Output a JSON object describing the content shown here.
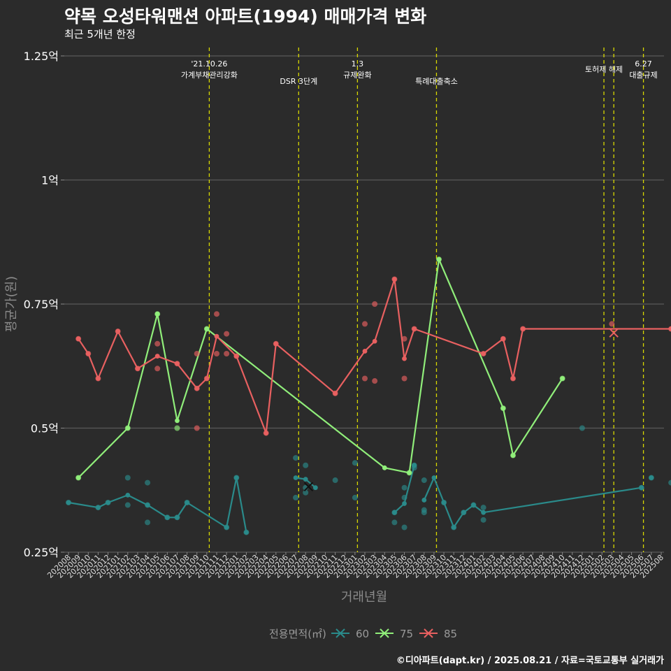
{
  "title": "약목 오성타워맨션 아파트(1994) 매매가격 변화",
  "subtitle": "최근 5개년 한정",
  "credit": "©디아파트(dapt.kr) / 2025.08.21 / 자료=국토교통부 실거래가",
  "chart_data": {
    "type": "line",
    "xlabel": "거래년월",
    "ylabel": "평균가(원)",
    "ylim": [
      0.25,
      1.25
    ],
    "yticks": [
      0.25,
      0.5,
      0.75,
      1,
      1.25
    ],
    "ytick_labels": [
      "0.25억",
      "0.5억",
      "0.75억",
      "1억",
      "1.25억"
    ],
    "grid": "horizontal",
    "x_categories": [
      "202008",
      "202009",
      "202010",
      "202011",
      "202012",
      "202101",
      "202102",
      "202103",
      "202104",
      "202105",
      "202106",
      "202107",
      "202108",
      "202109",
      "202110",
      "202111",
      "202112",
      "202201",
      "202202",
      "202203",
      "202204",
      "202205",
      "202206",
      "202207",
      "202208",
      "202209",
      "202210",
      "202211",
      "202212",
      "202301",
      "202302",
      "202303",
      "202304",
      "202305",
      "202306",
      "202307",
      "202308",
      "202309",
      "202310",
      "202311",
      "202312",
      "202401",
      "202402",
      "202403",
      "202404",
      "202405",
      "202406",
      "202407",
      "202408",
      "202409",
      "202410",
      "202411",
      "202412",
      "202501",
      "202502",
      "202503",
      "202504",
      "202505",
      "202506",
      "202507",
      "202508"
    ],
    "x_tick_labels": [
      "202008",
      "202009",
      "202010",
      "202011",
      "202012",
      "202101",
      "202102",
      "202103",
      "202104",
      "202105",
      "202106",
      "202107",
      "202108",
      "202109",
      "202110",
      "202111",
      "202112",
      "202201",
      "202202",
      "202203",
      "202204",
      "202205",
      "202206",
      "202207",
      "202208",
      "202209",
      "202210",
      "202211",
      "202212",
      "202301",
      "202302",
      "202303",
      "202304",
      "202305",
      "202306",
      "202307",
      "202308",
      "202309",
      "202310",
      "202311",
      "202312",
      "202401",
      "202402",
      "202403",
      "202404",
      "202405",
      "202406",
      "202407",
      "202408",
      "202409",
      "202410",
      "202411",
      "202412",
      "202501",
      "202502",
      "202503",
      "202504",
      "202505",
      "202506",
      "202507",
      "202508"
    ],
    "events": [
      {
        "x": 14.25,
        "label": "'21.10.26\n가계부채관리강화"
      },
      {
        "x": 23.3,
        "label": "DSR 3단계"
      },
      {
        "x": 29.25,
        "label": "1.3\n규제완화"
      },
      {
        "x": 37.25,
        "label": "특례대출축소"
      },
      {
        "x": 54.2,
        "label": "토허제 해제"
      },
      {
        "x": 55.2,
        "label": ""
      },
      {
        "x": 58.2,
        "label": "6.27\n대출규제"
      }
    ],
    "legend_title": "전용면적(㎡)",
    "legend_position": "bottom",
    "series": [
      {
        "name": "60",
        "color": "#2a8a8a",
        "line": [
          [
            0,
            0.35
          ],
          [
            3,
            0.34
          ],
          [
            4,
            0.35
          ],
          [
            6,
            0.365
          ],
          [
            8,
            0.345
          ],
          [
            10,
            0.32
          ],
          [
            11,
            0.32
          ],
          [
            12,
            0.35
          ],
          [
            16,
            0.3
          ],
          [
            17,
            0.4
          ],
          [
            18,
            0.29
          ],
          [
            23,
            0.4
          ],
          [
            24,
            0.397
          ],
          [
            25,
            0.38
          ],
          [
            33,
            0.33
          ],
          [
            34,
            0.348
          ],
          [
            35,
            0.425
          ],
          [
            36,
            0.355
          ],
          [
            37,
            0.4
          ],
          [
            38,
            0.35
          ],
          [
            39,
            0.3
          ],
          [
            40,
            0.33
          ],
          [
            41,
            0.345
          ],
          [
            42,
            0.33
          ],
          [
            58,
            0.38
          ],
          [
            59,
            0.4
          ]
        ],
        "segments": [
          [
            0,
            11
          ],
          [
            11,
            14
          ],
          [
            14,
            17
          ],
          [
            17,
            25
          ],
          [
            25,
            27
          ]
        ],
        "points": [
          [
            0,
            0.35
          ],
          [
            3,
            0.34
          ],
          [
            4,
            0.35
          ],
          [
            6,
            0.4
          ],
          [
            6,
            0.345
          ],
          [
            8,
            0.39
          ],
          [
            8,
            0.345
          ],
          [
            8,
            0.31
          ],
          [
            10,
            0.32
          ],
          [
            11,
            0.32
          ],
          [
            12,
            0.35
          ],
          [
            16,
            0.3
          ],
          [
            17,
            0.4
          ],
          [
            18,
            0.29
          ],
          [
            23,
            0.44
          ],
          [
            23,
            0.36
          ],
          [
            24,
            0.425
          ],
          [
            24,
            0.37
          ],
          [
            24,
            0.38
          ],
          [
            27,
            0.395
          ],
          [
            29,
            0.43
          ],
          [
            29,
            0.36
          ],
          [
            33,
            0.33
          ],
          [
            33,
            0.31
          ],
          [
            34,
            0.38
          ],
          [
            34,
            0.36
          ],
          [
            34,
            0.3
          ],
          [
            35,
            0.425
          ],
          [
            35,
            0.42
          ],
          [
            36,
            0.395
          ],
          [
            36,
            0.335
          ],
          [
            36,
            0.33
          ],
          [
            38,
            0.35
          ],
          [
            39,
            0.3
          ],
          [
            40,
            0.33
          ],
          [
            41,
            0.345
          ],
          [
            42,
            0.34
          ],
          [
            42,
            0.315
          ],
          [
            52,
            0.5
          ],
          [
            58,
            0.38
          ],
          [
            59,
            0.4
          ],
          [
            61,
            0.39
          ]
        ],
        "marker": [
          24.3,
          0.382
        ]
      },
      {
        "name": "75",
        "color": "#90ee7a",
        "line": [
          [
            1,
            0.4
          ],
          [
            6,
            0.5
          ],
          [
            9,
            0.73
          ],
          [
            11,
            0.515
          ],
          [
            14,
            0.7
          ],
          [
            32,
            0.42
          ],
          [
            34.5,
            0.41
          ],
          [
            37.5,
            0.84
          ],
          [
            44,
            0.54
          ],
          [
            45,
            0.445
          ],
          [
            50,
            0.6
          ]
        ],
        "points": [
          [
            1,
            0.4
          ],
          [
            6,
            0.5
          ],
          [
            9,
            0.73
          ],
          [
            11,
            0.5
          ],
          [
            14,
            0.7
          ],
          [
            34.5,
            0.41
          ],
          [
            37.5,
            0.84
          ],
          [
            44,
            0.54
          ],
          [
            45,
            0.445
          ],
          [
            50,
            0.6
          ]
        ]
      },
      {
        "name": "85",
        "color": "#e86060",
        "line": [
          [
            1,
            0.68
          ],
          [
            2,
            0.65
          ],
          [
            3,
            0.6
          ],
          [
            5,
            0.695
          ],
          [
            7,
            0.62
          ],
          [
            9,
            0.645
          ],
          [
            11,
            0.63
          ],
          [
            13,
            0.58
          ],
          [
            14,
            0.6
          ],
          [
            15,
            0.685
          ],
          [
            17,
            0.645
          ],
          [
            20,
            0.49
          ],
          [
            21,
            0.67
          ],
          [
            27,
            0.57
          ],
          [
            30,
            0.655
          ],
          [
            31,
            0.675
          ],
          [
            33,
            0.8
          ],
          [
            34,
            0.64
          ],
          [
            35,
            0.7
          ],
          [
            42,
            0.65
          ],
          [
            44,
            0.68
          ],
          [
            45,
            0.6
          ],
          [
            46,
            0.7
          ],
          [
            61,
            0.7
          ]
        ],
        "points": [
          [
            1,
            0.68
          ],
          [
            2,
            0.65
          ],
          [
            3,
            0.6
          ],
          [
            5,
            0.695
          ],
          [
            7,
            0.62
          ],
          [
            9,
            0.67
          ],
          [
            9,
            0.62
          ],
          [
            11,
            0.63
          ],
          [
            13,
            0.65
          ],
          [
            13,
            0.58
          ],
          [
            13,
            0.5
          ],
          [
            14,
            0.6
          ],
          [
            15,
            0.73
          ],
          [
            15,
            0.65
          ],
          [
            16,
            0.69
          ],
          [
            16,
            0.65
          ],
          [
            17,
            0.645
          ],
          [
            20,
            0.49
          ],
          [
            21,
            0.67
          ],
          [
            27,
            0.57
          ],
          [
            30,
            0.71
          ],
          [
            30,
            0.6
          ],
          [
            31,
            0.75
          ],
          [
            31,
            0.595
          ],
          [
            33,
            0.8
          ],
          [
            34,
            0.68
          ],
          [
            34,
            0.6
          ],
          [
            35,
            0.7
          ],
          [
            42,
            0.65
          ],
          [
            44,
            0.68
          ],
          [
            45,
            0.6
          ],
          [
            46,
            0.7
          ],
          [
            55,
            0.71
          ],
          [
            61,
            0.7
          ]
        ],
        "marker": [
          55.2,
          0.692
        ]
      }
    ]
  }
}
